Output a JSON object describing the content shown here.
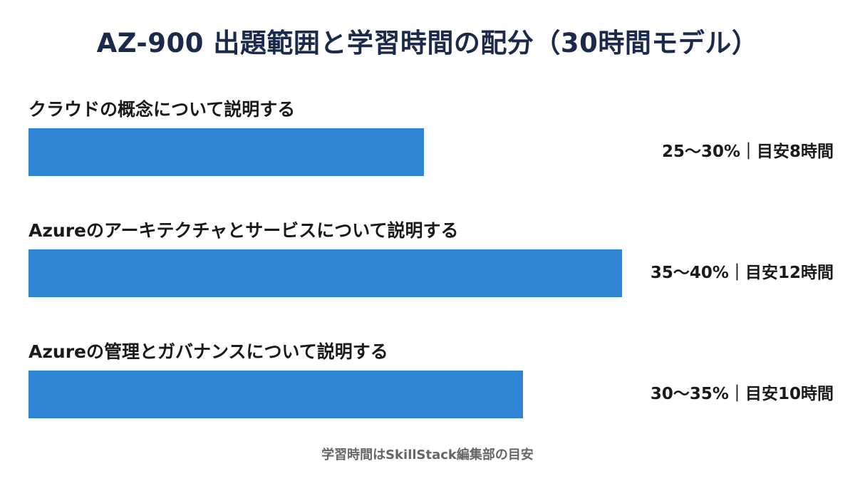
{
  "chart_data": {
    "type": "bar",
    "orientation": "horizontal",
    "title": "AZ-900 出題範囲と学習時間の配分（30時間モデル）",
    "categories": [
      "クラウドの概念について説明する",
      "Azureのアーキテクチャとサービスについて説明する",
      "Azureの管理とガバナンスについて説明する"
    ],
    "values": [
      8,
      12,
      10
    ],
    "value_labels": [
      "25〜30%｜目安8時間",
      "35〜40%｜目安12時間",
      "30〜35%｜目安10時間"
    ],
    "bar_color": "#2f84d4",
    "grid": false,
    "footnote": "学習時間はSkillStack編集部の目安"
  }
}
